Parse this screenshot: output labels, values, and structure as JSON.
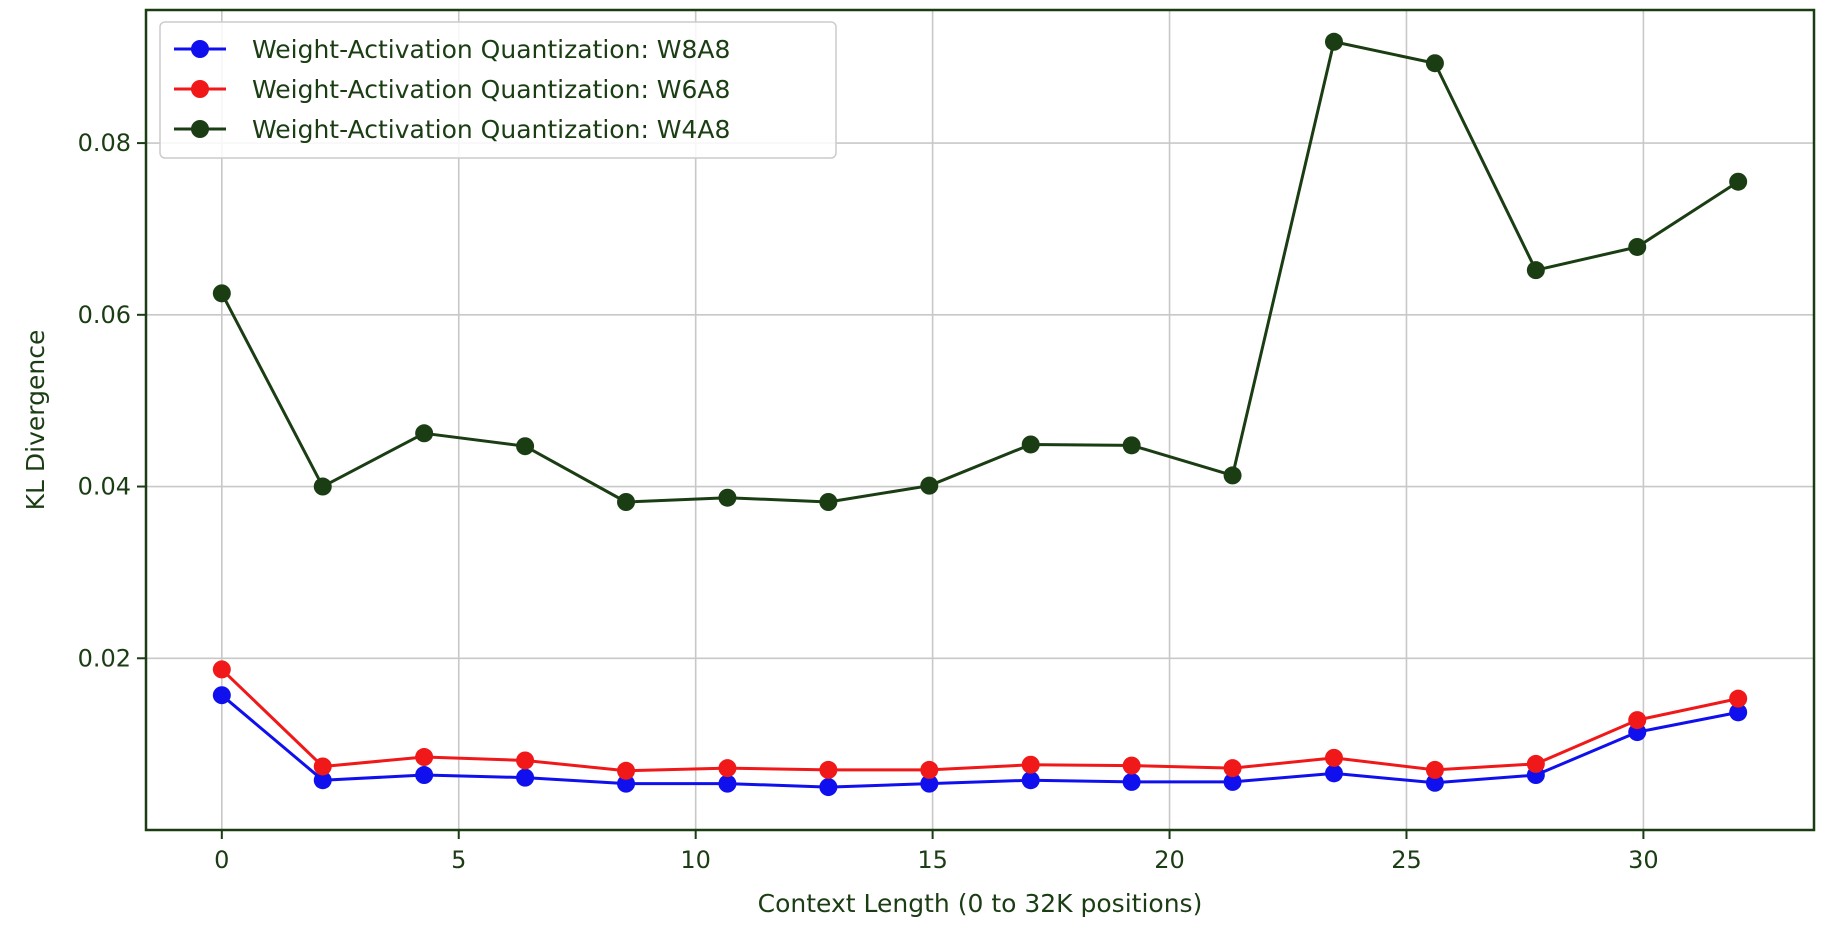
{
  "chart_data": {
    "type": "line",
    "title": "",
    "xlabel": "Context Length (0 to 32K positions)",
    "ylabel": "KL Divergence",
    "xlim": [
      -1.6,
      33.6
    ],
    "ylim": [
      0.0,
      0.0955
    ],
    "xticks": [
      0,
      5,
      10,
      15,
      20,
      25,
      30
    ],
    "xtick_labels": [
      "0",
      "5",
      "10",
      "15",
      "20",
      "25",
      "30"
    ],
    "yticks": [
      0.02,
      0.04,
      0.06,
      0.08
    ],
    "ytick_labels": [
      "0.02",
      "0.04",
      "0.06",
      "0.08"
    ],
    "grid": true,
    "legend_position": "top-left",
    "colors": {
      "axes": "#1b3d14",
      "grid": "#c8c8c8",
      "text": "#1b3d14"
    },
    "x": [
      0.0,
      2.13,
      4.27,
      6.4,
      8.53,
      10.67,
      12.8,
      14.93,
      17.07,
      19.2,
      21.33,
      23.47,
      25.6,
      27.73,
      29.87,
      32.0
    ],
    "series": [
      {
        "name": "Weight-Activation Quantization: W8A8",
        "color": "#1010ee",
        "values": [
          0.0157,
          0.0058,
          0.0064,
          0.0061,
          0.0054,
          0.0054,
          0.005,
          0.0054,
          0.0058,
          0.0056,
          0.0056,
          0.0066,
          0.0055,
          0.0064,
          0.0114,
          0.0137
        ]
      },
      {
        "name": "Weight-Activation Quantization: W6A8",
        "color": "#f01818",
        "values": [
          0.0187,
          0.0074,
          0.0085,
          0.0081,
          0.0069,
          0.0072,
          0.007,
          0.007,
          0.0076,
          0.0075,
          0.0072,
          0.0084,
          0.007,
          0.0077,
          0.0128,
          0.0153
        ]
      },
      {
        "name": "Weight-Activation Quantization: W4A8",
        "color": "#1b3d14",
        "values": [
          0.0625,
          0.04,
          0.0462,
          0.0447,
          0.0382,
          0.0387,
          0.0382,
          0.0401,
          0.0449,
          0.0448,
          0.0413,
          0.0918,
          0.0893,
          0.0652,
          0.0679,
          0.0755
        ]
      }
    ]
  }
}
